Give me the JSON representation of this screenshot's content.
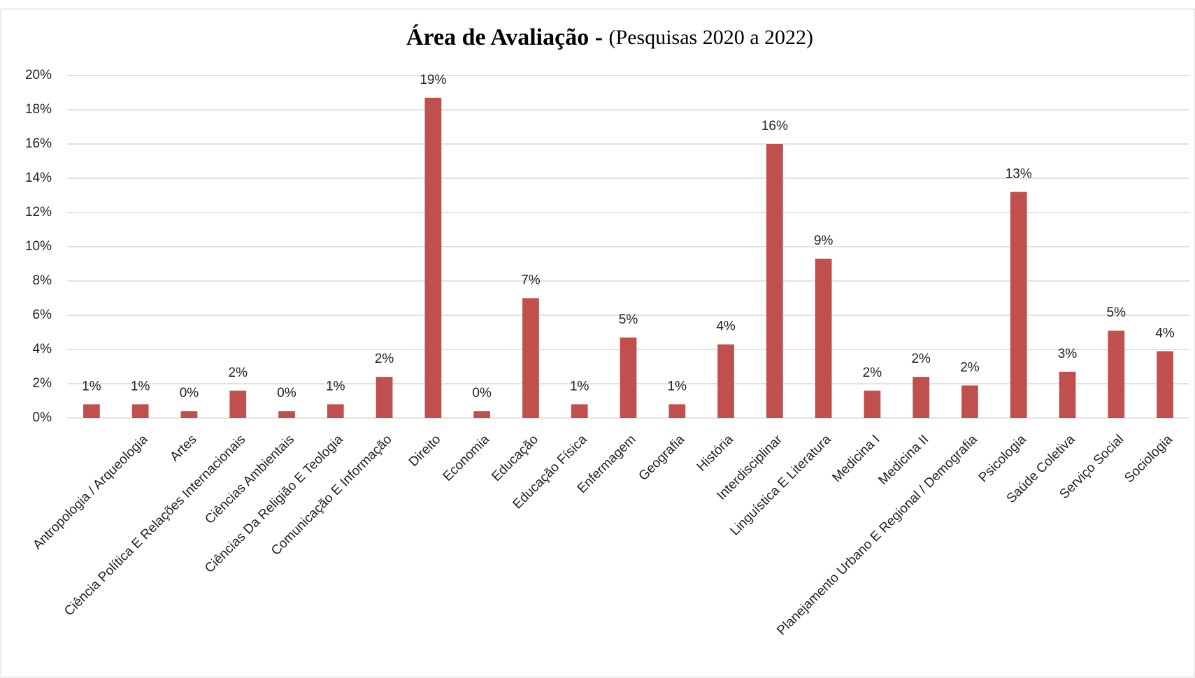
{
  "chart_data": {
    "type": "bar",
    "title": "Área de Avaliação -",
    "subtitle": "(Pesquisas 2020 a 2022)",
    "categories": [
      null,
      "Antropologia / Arqueologia",
      "Artes",
      "Ciência Política E Relações Internacionais",
      "Ciências Ambientais",
      "Ciências Da Religião E Teologia",
      "Comunicação E Informação",
      "Direito",
      "Economia",
      "Educação",
      "Educação Física",
      "Enfermagem",
      "Geografia",
      "História",
      "Interdisciplinar",
      "Linguística E Literatura",
      "Medicina I",
      "Medicina II",
      "Planejamento Urbano E Regional / Demografia",
      "Psicologia",
      "Saúde Coletiva",
      "Serviço Social",
      "Sociologia"
    ],
    "values": [
      0.8,
      0.8,
      0.4,
      1.6,
      0.4,
      0.8,
      2.4,
      18.7,
      0.4,
      7.0,
      0.8,
      4.7,
      0.8,
      4.3,
      16.0,
      9.3,
      1.6,
      2.4,
      1.9,
      13.2,
      2.7,
      5.1,
      3.9
    ],
    "value_labels": [
      "1%",
      "1%",
      "0%",
      "2%",
      "0%",
      "1%",
      "2%",
      "19%",
      "0%",
      "7%",
      "1%",
      "5%",
      "1%",
      "4%",
      "16%",
      "9%",
      "2%",
      "2%",
      "2%",
      "13%",
      "3%",
      "5%",
      "4%"
    ],
    "color": "#c0504d",
    "ylim": [
      0,
      20
    ],
    "yticks": [
      {
        "value": 0,
        "label": "0%"
      },
      {
        "value": 2,
        "label": "2%"
      },
      {
        "value": 4,
        "label": "4%"
      },
      {
        "value": 6,
        "label": "6%"
      },
      {
        "value": 8,
        "label": "8%"
      },
      {
        "value": 10,
        "label": "10%"
      },
      {
        "value": 12,
        "label": "12%"
      },
      {
        "value": 14,
        "label": "14%"
      },
      {
        "value": 16,
        "label": "16%"
      },
      {
        "value": 18,
        "label": "18%"
      },
      {
        "value": 20,
        "label": "20%"
      }
    ],
    "grid": true
  }
}
